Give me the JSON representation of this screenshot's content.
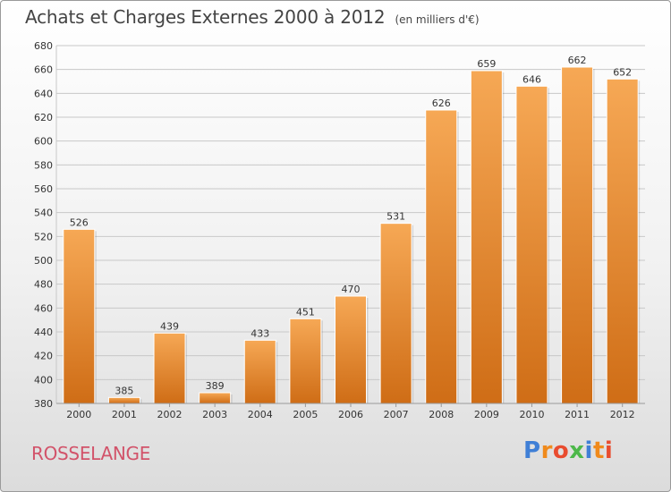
{
  "title": "Achats et Charges Externes 2000 à 2012",
  "subtitle": "(en milliers d'€)",
  "place_name": "ROSSELANGE",
  "brand": {
    "text": "Proxiti",
    "letter_colors": [
      "#3f7fd6",
      "#f08a1c",
      "#e94c2f",
      "#4db84a",
      "#3f7fd6",
      "#f08a1c",
      "#e94c2f"
    ]
  },
  "colors": {
    "bar_light": "#f6a855",
    "bar_dark": "#cf6d16",
    "grid": "#c8c8c8",
    "axis_text": "#333333"
  },
  "chart_data": {
    "type": "bar",
    "title": "Achats et Charges Externes 2000 à 2012",
    "subtitle": "(en milliers d'€)",
    "categories": [
      "2000",
      "2001",
      "2002",
      "2003",
      "2004",
      "2005",
      "2006",
      "2007",
      "2008",
      "2009",
      "2010",
      "2011",
      "2012"
    ],
    "values": [
      526,
      385,
      439,
      389,
      433,
      451,
      470,
      531,
      626,
      659,
      646,
      662,
      652
    ],
    "ylim": [
      380,
      680
    ],
    "yticks": [
      380,
      400,
      420,
      440,
      460,
      480,
      500,
      520,
      540,
      560,
      580,
      600,
      620,
      640,
      660,
      680
    ],
    "grid": true,
    "xlabel": "",
    "ylabel": ""
  }
}
